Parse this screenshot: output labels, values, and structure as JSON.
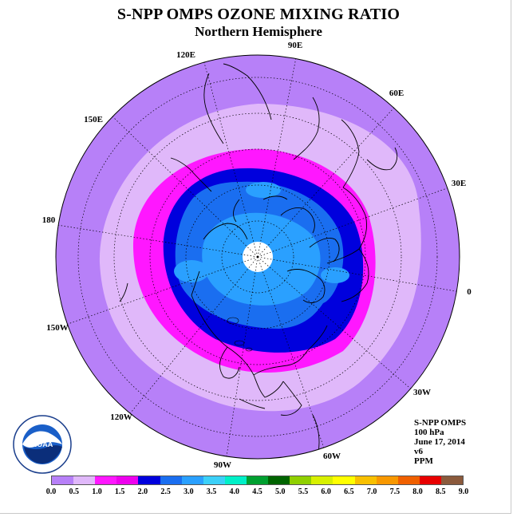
{
  "title": "S-NPP OMPS OZONE MIXING RATIO",
  "subtitle": "Northern Hemisphere",
  "longitude_labels": {
    "lon_120E": "120E",
    "lon_90E": "90E",
    "lon_60E": "60E",
    "lon_150E": "150E",
    "lon_30E": "30E",
    "lon_180": "180",
    "lon_0": "0",
    "lon_150W": "150W",
    "lon_30W": "30W",
    "lon_120W": "120W",
    "lon_90W": "90W",
    "lon_60W": "60W"
  },
  "info": {
    "instrument": "S-NPP OMPS",
    "level": "100 hPa",
    "date": "June 17, 2014",
    "version": "v6",
    "units": "PPM"
  },
  "logo": {
    "text": "NOAA",
    "icon": "noaa-logo"
  },
  "colorbar": {
    "ticks": [
      "0.0",
      "0.5",
      "1.0",
      "1.5",
      "2.0",
      "2.5",
      "3.0",
      "3.5",
      "4.0",
      "4.5",
      "5.0",
      "5.5",
      "6.0",
      "6.5",
      "7.0",
      "7.5",
      "8.0",
      "8.5",
      "9.0"
    ],
    "colors": [
      "#b780f8",
      "#e0b8fa",
      "#ff17ff",
      "#ee00ee",
      "#0000dd",
      "#1a6ef0",
      "#2aa0ff",
      "#3cd0f8",
      "#00f0c8",
      "#00a030",
      "#006400",
      "#90d000",
      "#d8f000",
      "#ffff00",
      "#f8c000",
      "#f89800",
      "#f06000",
      "#e80000",
      "#8b5a3c"
    ]
  },
  "map_colors": {
    "outer": "#b780f8",
    "light": "#e0b8fa",
    "magenta": "#ff17ff",
    "dark_blue": "#0000dd",
    "mid_blue": "#1a6ef0",
    "light_blue": "#2aa0ff",
    "polar_gap": "#ffffff"
  }
}
